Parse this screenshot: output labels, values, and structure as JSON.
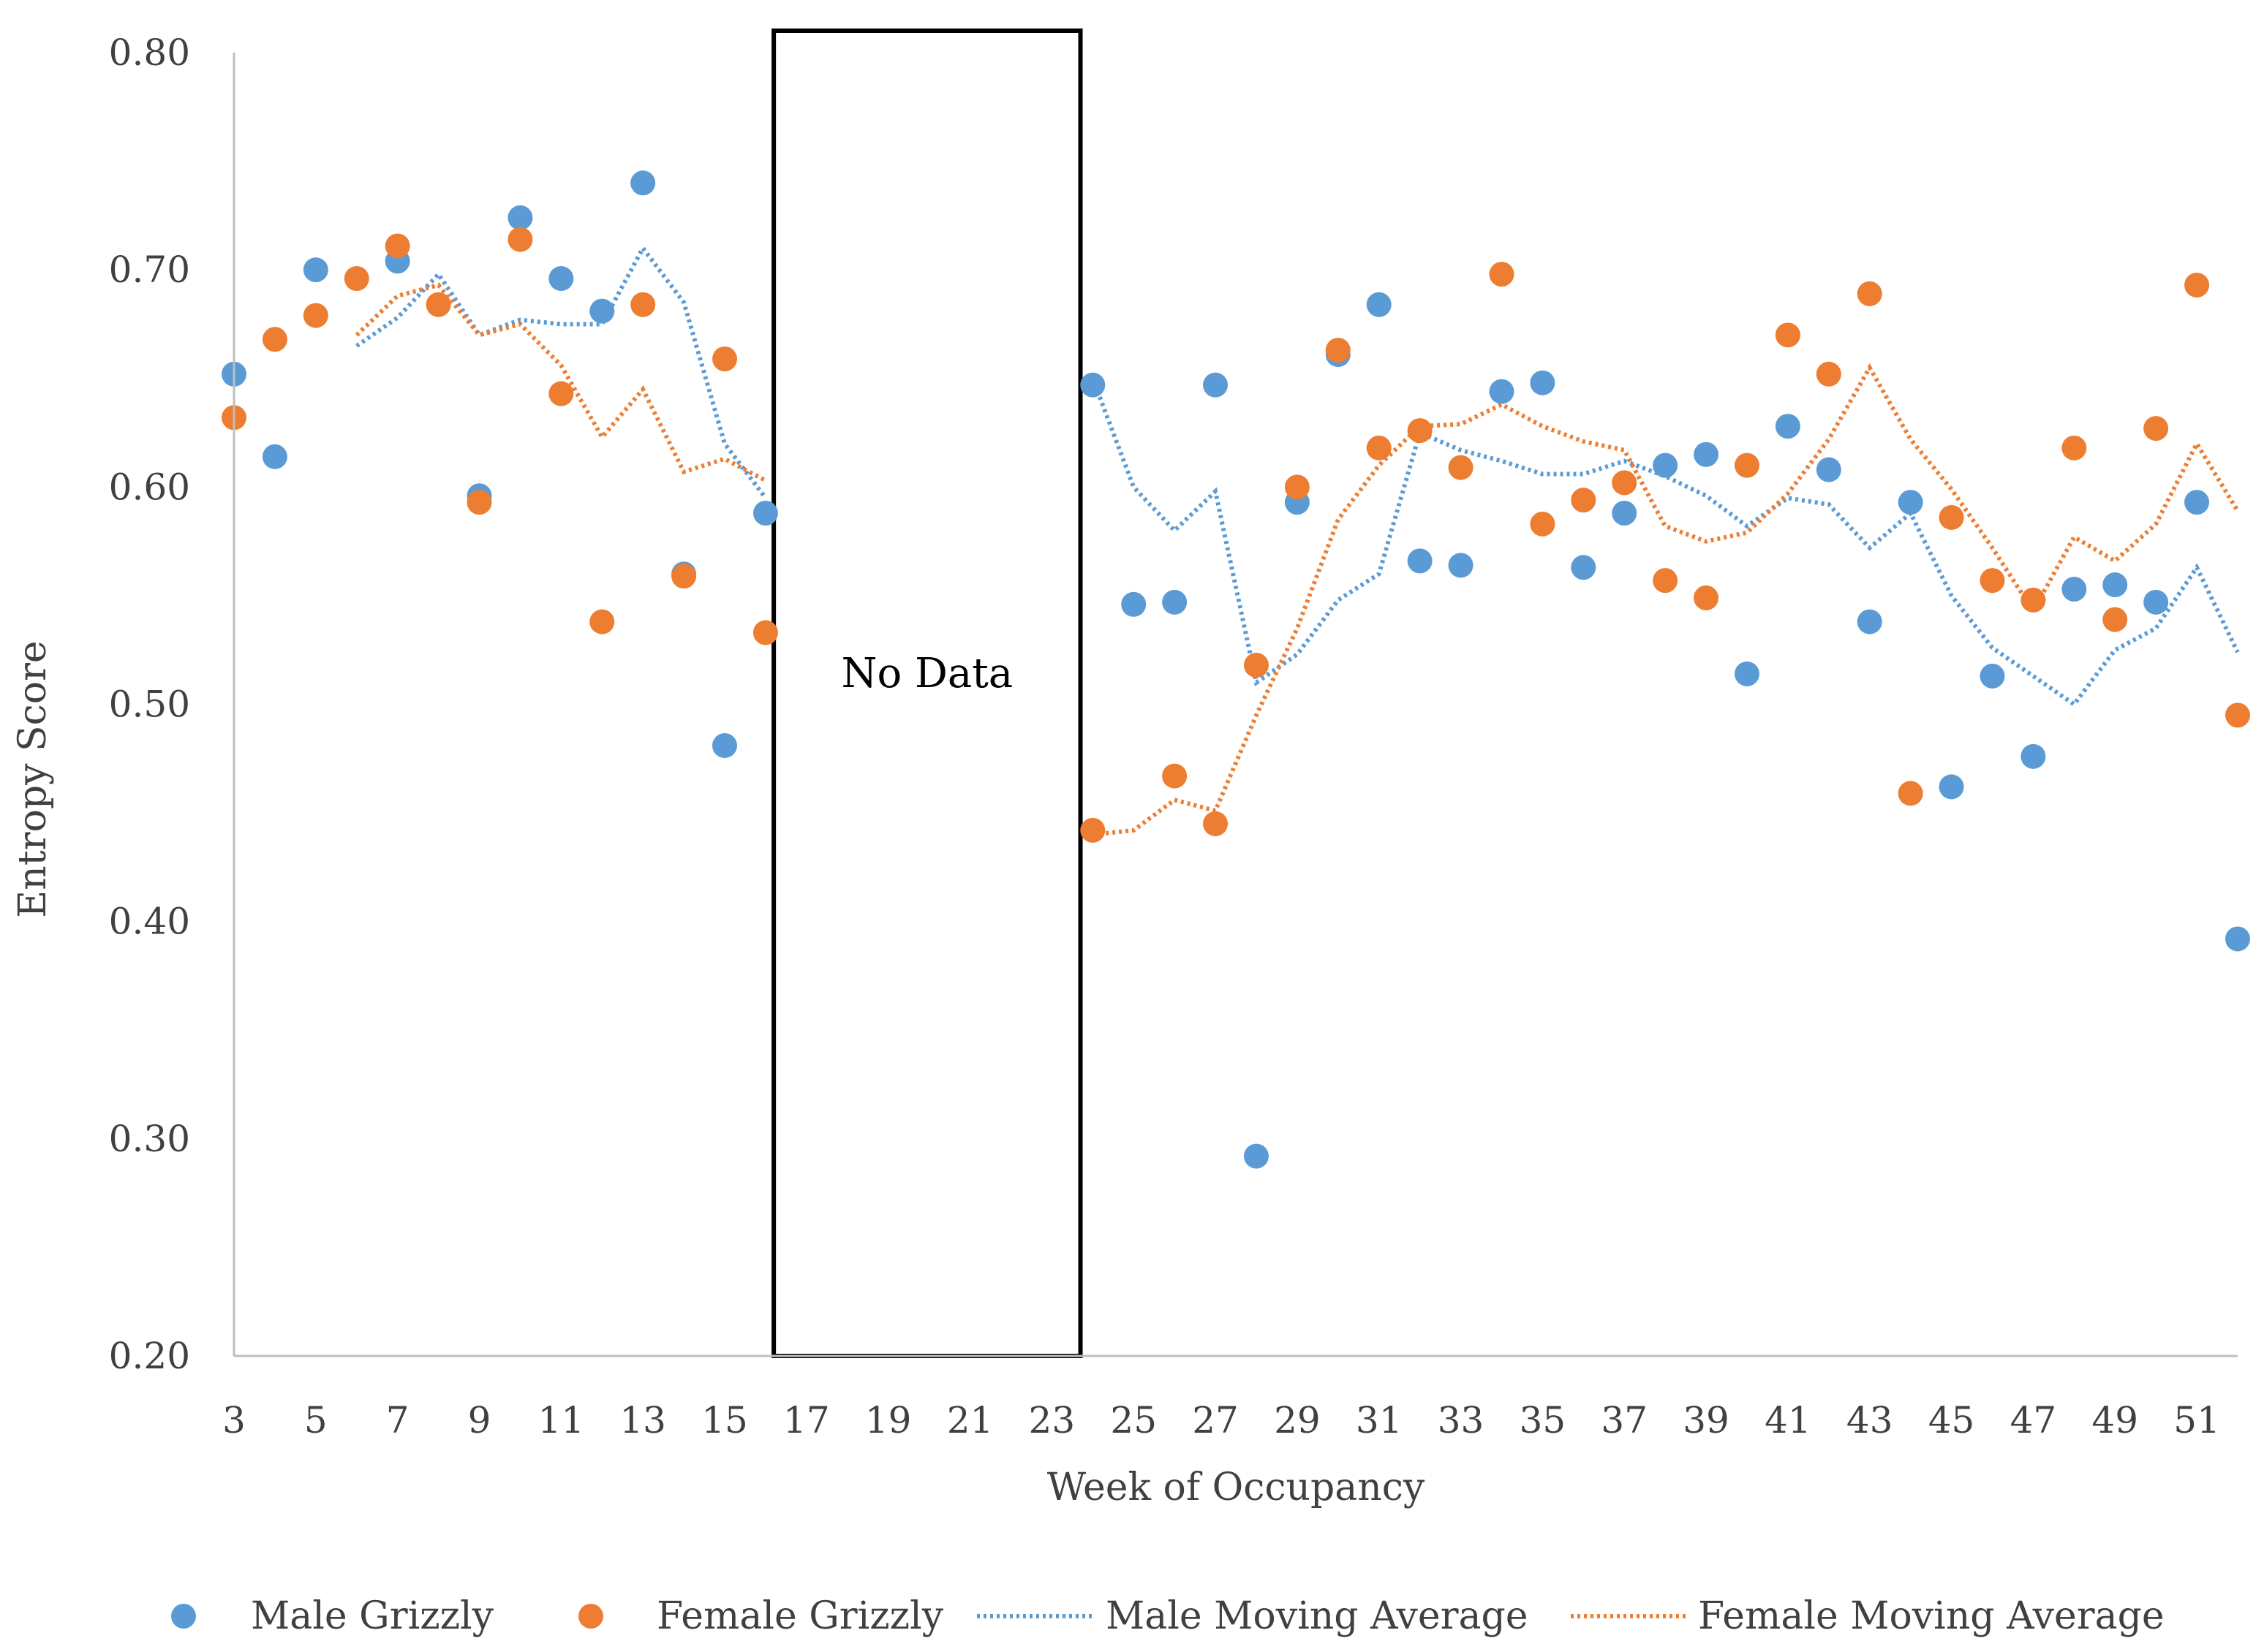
{
  "chart_data": {
    "type": "scatter",
    "title": "",
    "xlabel": "Week of Occupancy",
    "ylabel": "Entropy Score",
    "xlim": [
      3,
      52
    ],
    "ylim": [
      0.2,
      0.8
    ],
    "x_ticks": [
      3,
      5,
      7,
      9,
      11,
      13,
      15,
      17,
      19,
      21,
      23,
      25,
      27,
      29,
      31,
      33,
      35,
      37,
      39,
      41,
      43,
      45,
      47,
      49,
      51
    ],
    "y_ticks": [
      "0.20",
      "0.30",
      "0.40",
      "0.50",
      "0.60",
      "0.70",
      "0.80"
    ],
    "legend_position": "bottom",
    "no_data_region": {
      "x_start": 16.2,
      "x_end": 23.7,
      "label": "No Data"
    },
    "colors": {
      "male": "#5B9BD5",
      "female": "#ED7D31",
      "axis": "#bfbfbf",
      "text": "#404040"
    },
    "series": [
      {
        "name": "Male Grizzly",
        "kind": "points",
        "color": "#5B9BD5",
        "points": [
          [
            3,
            0.652
          ],
          [
            4,
            0.614
          ],
          [
            5,
            0.7
          ],
          [
            7,
            0.704
          ],
          [
            9,
            0.596
          ],
          [
            10,
            0.724
          ],
          [
            11,
            0.696
          ],
          [
            12,
            0.681
          ],
          [
            13,
            0.74
          ],
          [
            14,
            0.56
          ],
          [
            15,
            0.481
          ],
          [
            16,
            0.588
          ],
          [
            24,
            0.647
          ],
          [
            25,
            0.546
          ],
          [
            26,
            0.547
          ],
          [
            27,
            0.647
          ],
          [
            28,
            0.292
          ],
          [
            29,
            0.593
          ],
          [
            30,
            0.661
          ],
          [
            31,
            0.684
          ],
          [
            32,
            0.566
          ],
          [
            33,
            0.564
          ],
          [
            34,
            0.644
          ],
          [
            35,
            0.648
          ],
          [
            36,
            0.563
          ],
          [
            37,
            0.588
          ],
          [
            38,
            0.61
          ],
          [
            39,
            0.615
          ],
          [
            40,
            0.514
          ],
          [
            41,
            0.628
          ],
          [
            42,
            0.608
          ],
          [
            43,
            0.538
          ],
          [
            44,
            0.593
          ],
          [
            45,
            0.462
          ],
          [
            46,
            0.513
          ],
          [
            47,
            0.476
          ],
          [
            48,
            0.553
          ],
          [
            49,
            0.555
          ],
          [
            50,
            0.547
          ],
          [
            51,
            0.593
          ],
          [
            52,
            0.392
          ]
        ]
      },
      {
        "name": "Female Grizzly",
        "kind": "points",
        "color": "#ED7D31",
        "points": [
          [
            3,
            0.632
          ],
          [
            4,
            0.668
          ],
          [
            5,
            0.679
          ],
          [
            6,
            0.696
          ],
          [
            7,
            0.711
          ],
          [
            8,
            0.684
          ],
          [
            9,
            0.593
          ],
          [
            10,
            0.714
          ],
          [
            11,
            0.643
          ],
          [
            12,
            0.538
          ],
          [
            13,
            0.684
          ],
          [
            14,
            0.559
          ],
          [
            15,
            0.659
          ],
          [
            16,
            0.533
          ],
          [
            24,
            0.442
          ],
          [
            26,
            0.467
          ],
          [
            27,
            0.445
          ],
          [
            28,
            0.518
          ],
          [
            29,
            0.6
          ],
          [
            30,
            0.663
          ],
          [
            31,
            0.618
          ],
          [
            32,
            0.626
          ],
          [
            33,
            0.609
          ],
          [
            34,
            0.698
          ],
          [
            35,
            0.583
          ],
          [
            36,
            0.594
          ],
          [
            37,
            0.602
          ],
          [
            38,
            0.557
          ],
          [
            39,
            0.549
          ],
          [
            40,
            0.61
          ],
          [
            41,
            0.67
          ],
          [
            42,
            0.652
          ],
          [
            43,
            0.689
          ],
          [
            44,
            0.459
          ],
          [
            45,
            0.586
          ],
          [
            46,
            0.557
          ],
          [
            47,
            0.548
          ],
          [
            48,
            0.618
          ],
          [
            49,
            0.539
          ],
          [
            50,
            0.627
          ],
          [
            51,
            0.693
          ],
          [
            52,
            0.495
          ]
        ]
      },
      {
        "name": "Male Moving Average",
        "kind": "dotted-line",
        "color": "#5B9BD5",
        "segments": [
          [
            [
              6,
              0.665
            ],
            [
              7,
              0.678
            ],
            [
              8,
              0.698
            ],
            [
              9,
              0.67
            ],
            [
              10,
              0.677
            ],
            [
              11,
              0.675
            ],
            [
              12,
              0.675
            ],
            [
              13,
              0.71
            ],
            [
              14,
              0.685
            ],
            [
              15,
              0.62
            ],
            [
              16,
              0.595
            ]
          ],
          [
            [
              24,
              0.65
            ],
            [
              25,
              0.6
            ],
            [
              26,
              0.58
            ],
            [
              27,
              0.598
            ],
            [
              28,
              0.51
            ],
            [
              29,
              0.523
            ],
            [
              30,
              0.548
            ],
            [
              31,
              0.56
            ],
            [
              32,
              0.625
            ],
            [
              33,
              0.617
            ],
            [
              34,
              0.612
            ],
            [
              35,
              0.606
            ],
            [
              36,
              0.606
            ],
            [
              37,
              0.612
            ],
            [
              38,
              0.605
            ],
            [
              39,
              0.596
            ],
            [
              40,
              0.582
            ],
            [
              41,
              0.595
            ],
            [
              42,
              0.592
            ],
            [
              43,
              0.572
            ],
            [
              44,
              0.588
            ],
            [
              45,
              0.55
            ],
            [
              46,
              0.526
            ],
            [
              47,
              0.513
            ],
            [
              48,
              0.5
            ],
            [
              49,
              0.525
            ],
            [
              50,
              0.535
            ],
            [
              51,
              0.563
            ],
            [
              52,
              0.524
            ]
          ]
        ]
      },
      {
        "name": "Female Moving Average",
        "kind": "dotted-line",
        "color": "#ED7D31",
        "segments": [
          [
            [
              6,
              0.67
            ],
            [
              7,
              0.688
            ],
            [
              8,
              0.693
            ],
            [
              9,
              0.67
            ],
            [
              10,
              0.675
            ],
            [
              11,
              0.656
            ],
            [
              12,
              0.623
            ],
            [
              13,
              0.645
            ],
            [
              14,
              0.607
            ],
            [
              15,
              0.613
            ],
            [
              16,
              0.603
            ]
          ],
          [
            [
              24,
              0.44
            ],
            [
              25,
              0.442
            ],
            [
              26,
              0.456
            ],
            [
              27,
              0.451
            ],
            [
              28,
              0.495
            ],
            [
              29,
              0.535
            ],
            [
              30,
              0.585
            ],
            [
              31,
              0.61
            ],
            [
              32,
              0.628
            ],
            [
              33,
              0.629
            ],
            [
              34,
              0.638
            ],
            [
              35,
              0.628
            ],
            [
              36,
              0.621
            ],
            [
              37,
              0.617
            ],
            [
              38,
              0.582
            ],
            [
              39,
              0.575
            ],
            [
              40,
              0.579
            ],
            [
              41,
              0.597
            ],
            [
              42,
              0.622
            ],
            [
              43,
              0.655
            ],
            [
              44,
              0.622
            ],
            [
              45,
              0.599
            ],
            [
              46,
              0.572
            ],
            [
              47,
              0.543
            ],
            [
              48,
              0.577
            ],
            [
              49,
              0.566
            ],
            [
              50,
              0.583
            ],
            [
              51,
              0.62
            ],
            [
              52,
              0.589
            ]
          ]
        ]
      }
    ]
  },
  "legend": {
    "male_grizzly": "Male Grizzly",
    "female_grizzly": "Female Grizzly",
    "male_moving_average": "Male Moving Average",
    "female_moving_average": "Female Moving Average"
  }
}
